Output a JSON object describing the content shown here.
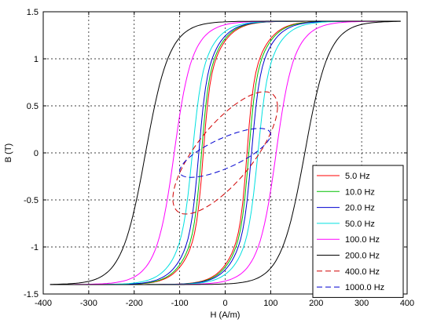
{
  "chart_data": {
    "type": "line",
    "title": "",
    "xlabel": "H (A/m)",
    "ylabel": "B (T)",
    "xlim": [
      -400,
      400
    ],
    "ylim": [
      -1.5,
      1.5
    ],
    "xticks": [
      -400,
      -300,
      -200,
      -100,
      0,
      100,
      200,
      300,
      400
    ],
    "yticks": [
      -1.5,
      -1,
      -0.5,
      0,
      0.5,
      1,
      1.5
    ],
    "xtick_labels": [
      "-400",
      "-300",
      "-200",
      "-100",
      "0",
      "100",
      "200",
      "300",
      "400"
    ],
    "ytick_labels": [
      "-1.5",
      "-1",
      "-0.5",
      "0",
      "0.5",
      "1",
      "1.5"
    ],
    "grid": true,
    "legend_position": "bottom-right",
    "series": [
      {
        "name": "5.0 Hz",
        "color": "#ff0000",
        "dash": "solid",
        "type": "major",
        "params": {
          "hc": 48,
          "w": 14,
          "bs": 1.4,
          "h0": 55,
          "tip_h": 385,
          "tip_b": 1.4
        }
      },
      {
        "name": "10.0 Hz",
        "color": "#00c000",
        "dash": "solid",
        "type": "major",
        "params": {
          "hc": 52,
          "w": 15,
          "bs": 1.4,
          "h0": 55,
          "tip_h": 385,
          "tip_b": 1.4
        }
      },
      {
        "name": "20.0 Hz",
        "color": "#0000d0",
        "dash": "solid",
        "type": "major",
        "params": {
          "hc": 58,
          "w": 16,
          "bs": 1.4,
          "h0": 56,
          "tip_h": 385,
          "tip_b": 1.4
        }
      },
      {
        "name": "50.0 Hz",
        "color": "#00e0e0",
        "dash": "solid",
        "type": "major",
        "params": {
          "hc": 72,
          "w": 19,
          "bs": 1.4,
          "h0": 58,
          "tip_h": 385,
          "tip_b": 1.4
        }
      },
      {
        "name": "100.0 Hz",
        "color": "#ff00ff",
        "dash": "solid",
        "type": "major",
        "params": {
          "hc": 112,
          "w": 30,
          "bs": 1.4,
          "h0": 62,
          "tip_h": 385,
          "tip_b": 1.4
        }
      },
      {
        "name": "200.0 Hz",
        "color": "#000000",
        "dash": "solid",
        "type": "major",
        "params": {
          "hc": 175,
          "w": 45,
          "bs": 1.4,
          "h0": 65,
          "tip_h": 385,
          "tip_b": 1.4
        }
      },
      {
        "name": "400.0 Hz",
        "color": "#d00000",
        "dash": "dashed",
        "type": "minor",
        "params": {
          "hr": 115,
          "br": 0.65,
          "theta": 0.85
        }
      },
      {
        "name": "1000.0 Hz",
        "color": "#0000d0",
        "dash": "dashed",
        "type": "minor",
        "params": {
          "hr": 100,
          "br": 0.26,
          "theta": 0.85
        }
      }
    ]
  }
}
